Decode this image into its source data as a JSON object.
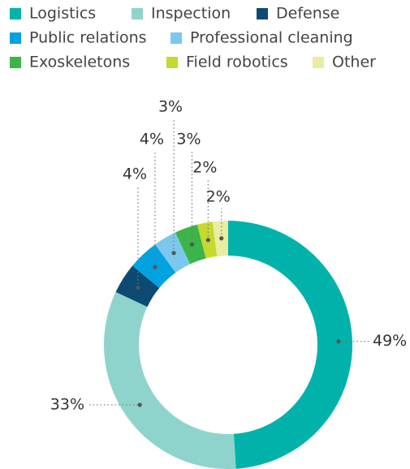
{
  "chart_data": {
    "type": "donut",
    "categories": [
      "Logistics",
      "Inspection",
      "Defense",
      "Public relations",
      "Professional cleaning",
      "Exoskeletons",
      "Field robotics",
      "Other"
    ],
    "values": [
      49,
      33,
      4,
      4,
      3,
      3,
      2,
      2
    ],
    "value_labels": [
      "49%",
      "33%",
      "4%",
      "4%",
      "3%",
      "3%",
      "2%",
      "2%"
    ],
    "colors": [
      "#00b2a9",
      "#8fd4cc",
      "#0c4a73",
      "#00a3e0",
      "#7cc7ee",
      "#3bb54a",
      "#c6d92e",
      "#e9eca2"
    ],
    "legend": "top"
  }
}
